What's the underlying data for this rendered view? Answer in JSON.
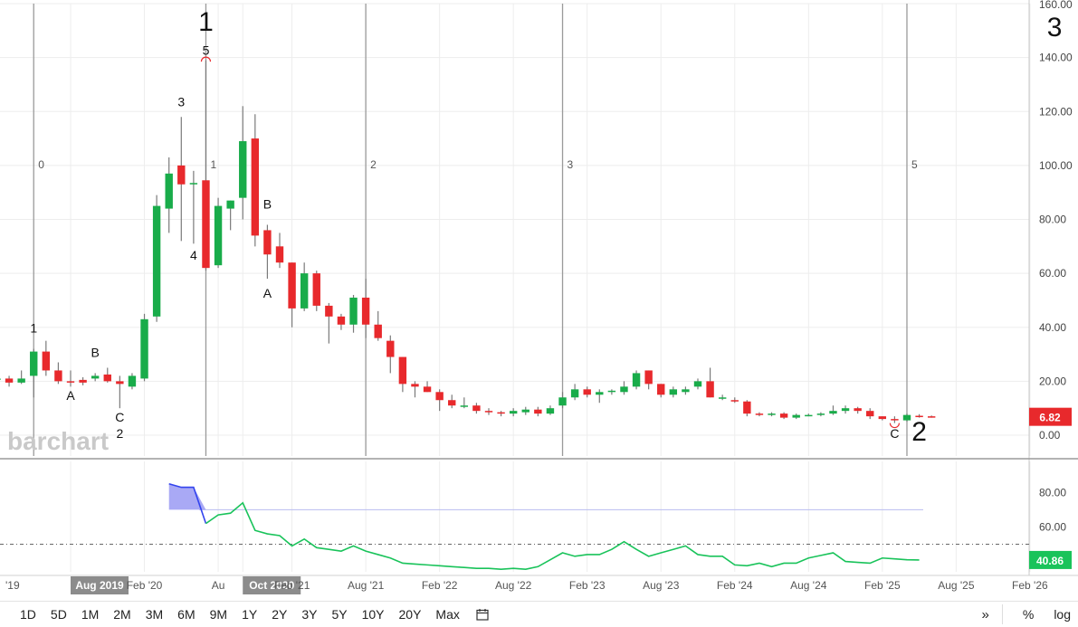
{
  "chart_data": {
    "type": "candlestick",
    "interval": "monthly",
    "ylim": [
      0,
      160
    ],
    "yticks": [
      0,
      20,
      40,
      60,
      80,
      100,
      120,
      140,
      160
    ],
    "ytick_labels": [
      "0.00",
      "20.00",
      "40.00",
      "60.00",
      "80.00",
      "100.00",
      "120.00",
      "140.00",
      "160.00"
    ],
    "last_price_label": "6.82",
    "x_labels": [
      "'19",
      "Aug 2019",
      "Feb '20",
      "Au",
      "Oct 2020",
      "Feb '21",
      "Aug '21",
      "Feb '22",
      "Aug '22",
      "Feb '23",
      "Aug '23",
      "Feb '24",
      "Aug '24",
      "Feb '25",
      "Aug '25",
      "Feb '26"
    ],
    "x_label_dates": [
      "2019-01",
      "2019-08",
      "2020-02",
      "2020-08",
      "2020-10",
      "2021-02",
      "2021-08",
      "2022-02",
      "2022-08",
      "2023-02",
      "2023-08",
      "2024-02",
      "2024-08",
      "2025-02",
      "2025-08",
      "2026-02"
    ],
    "highlighted_x_labels": [
      "Aug 2019",
      "Oct 2020"
    ],
    "candles": [
      {
        "date": "2019-02",
        "o": 20.5,
        "h": 23,
        "l": 19.5,
        "c": 21
      },
      {
        "date": "2019-03",
        "o": 21,
        "h": 22,
        "l": 18,
        "c": 19.5
      },
      {
        "date": "2019-04",
        "o": 19.5,
        "h": 24,
        "l": 19,
        "c": 21
      },
      {
        "date": "2019-05",
        "o": 22,
        "h": 32,
        "l": 14,
        "c": 31
      },
      {
        "date": "2019-06",
        "o": 31,
        "h": 35,
        "l": 22,
        "c": 24
      },
      {
        "date": "2019-07",
        "o": 24,
        "h": 27,
        "l": 19,
        "c": 20
      },
      {
        "date": "2019-08",
        "o": 20,
        "h": 24,
        "l": 18,
        "c": 19.5
      },
      {
        "date": "2019-09",
        "o": 20.5,
        "h": 21.5,
        "l": 18.5,
        "c": 19.5
      },
      {
        "date": "2019-10",
        "o": 21,
        "h": 23,
        "l": 20,
        "c": 22
      },
      {
        "date": "2019-11",
        "o": 22.5,
        "h": 25,
        "l": 19.5,
        "c": 20
      },
      {
        "date": "2019-12",
        "o": 20,
        "h": 22,
        "l": 10,
        "c": 19
      },
      {
        "date": "2020-01",
        "o": 18,
        "h": 23,
        "l": 17,
        "c": 22
      },
      {
        "date": "2020-02",
        "o": 21,
        "h": 45,
        "l": 20,
        "c": 43
      },
      {
        "date": "2020-03",
        "o": 44,
        "h": 89,
        "l": 42,
        "c": 85
      },
      {
        "date": "2020-04",
        "o": 84,
        "h": 103,
        "l": 75,
        "c": 97
      },
      {
        "date": "2020-05",
        "o": 100,
        "h": 118,
        "l": 72,
        "c": 93
      },
      {
        "date": "2020-06",
        "o": 93,
        "h": 98,
        "l": 71,
        "c": 93.5
      },
      {
        "date": "2020-07",
        "o": 94.5,
        "h": 139,
        "l": 61,
        "c": 62
      },
      {
        "date": "2020-08",
        "o": 63,
        "h": 88,
        "l": 62,
        "c": 85
      },
      {
        "date": "2020-09",
        "o": 84,
        "h": 87,
        "l": 76,
        "c": 87
      },
      {
        "date": "2020-10",
        "o": 88,
        "h": 122,
        "l": 80,
        "c": 109
      },
      {
        "date": "2020-11",
        "o": 110,
        "h": 119,
        "l": 70,
        "c": 74
      },
      {
        "date": "2020-12",
        "o": 76,
        "h": 78,
        "l": 58,
        "c": 67
      },
      {
        "date": "2021-01",
        "o": 70,
        "h": 75,
        "l": 62,
        "c": 64
      },
      {
        "date": "2021-02",
        "o": 64,
        "h": 64,
        "l": 40,
        "c": 47
      },
      {
        "date": "2021-03",
        "o": 47,
        "h": 64,
        "l": 46,
        "c": 60
      },
      {
        "date": "2021-04",
        "o": 60,
        "h": 61,
        "l": 46,
        "c": 48
      },
      {
        "date": "2021-05",
        "o": 48,
        "h": 49,
        "l": 34,
        "c": 44
      },
      {
        "date": "2021-06",
        "o": 44,
        "h": 45,
        "l": 39,
        "c": 41
      },
      {
        "date": "2021-07",
        "o": 41,
        "h": 52,
        "l": 38,
        "c": 51
      },
      {
        "date": "2021-08",
        "o": 51,
        "h": 58,
        "l": 36,
        "c": 41
      },
      {
        "date": "2021-09",
        "o": 41,
        "h": 46,
        "l": 35,
        "c": 36
      },
      {
        "date": "2021-10",
        "o": 35,
        "h": 37,
        "l": 23,
        "c": 29
      },
      {
        "date": "2021-11",
        "o": 29,
        "h": 29,
        "l": 16,
        "c": 19
      },
      {
        "date": "2021-12",
        "o": 19,
        "h": 20,
        "l": 14,
        "c": 18
      },
      {
        "date": "2022-01",
        "o": 18,
        "h": 20,
        "l": 16,
        "c": 16
      },
      {
        "date": "2022-02",
        "o": 16,
        "h": 17,
        "l": 9,
        "c": 13
      },
      {
        "date": "2022-03",
        "o": 13,
        "h": 15,
        "l": 10,
        "c": 11
      },
      {
        "date": "2022-04",
        "o": 11,
        "h": 14,
        "l": 10,
        "c": 11
      },
      {
        "date": "2022-05",
        "o": 11,
        "h": 12,
        "l": 8,
        "c": 9
      },
      {
        "date": "2022-06",
        "o": 9,
        "h": 10,
        "l": 7.5,
        "c": 8.5
      },
      {
        "date": "2022-07",
        "o": 8.5,
        "h": 9,
        "l": 7,
        "c": 8
      },
      {
        "date": "2022-08",
        "o": 8,
        "h": 10,
        "l": 7,
        "c": 9
      },
      {
        "date": "2022-09",
        "o": 8.5,
        "h": 10.5,
        "l": 7.5,
        "c": 9.5
      },
      {
        "date": "2022-10",
        "o": 9.5,
        "h": 10.5,
        "l": 7,
        "c": 8
      },
      {
        "date": "2022-11",
        "o": 8,
        "h": 11,
        "l": 7.5,
        "c": 10
      },
      {
        "date": "2022-12",
        "o": 11,
        "h": 16,
        "l": 10,
        "c": 14
      },
      {
        "date": "2023-01",
        "o": 14,
        "h": 19,
        "l": 13,
        "c": 17
      },
      {
        "date": "2023-02",
        "o": 17,
        "h": 18,
        "l": 14,
        "c": 15
      },
      {
        "date": "2023-03",
        "o": 15,
        "h": 17,
        "l": 12,
        "c": 16
      },
      {
        "date": "2023-04",
        "o": 16,
        "h": 17,
        "l": 15,
        "c": 16.5
      },
      {
        "date": "2023-05",
        "o": 16,
        "h": 20,
        "l": 15,
        "c": 18
      },
      {
        "date": "2023-06",
        "o": 18,
        "h": 24,
        "l": 17,
        "c": 23
      },
      {
        "date": "2023-07",
        "o": 24,
        "h": 24,
        "l": 17,
        "c": 19
      },
      {
        "date": "2023-08",
        "o": 19,
        "h": 19,
        "l": 14,
        "c": 15
      },
      {
        "date": "2023-09",
        "o": 15,
        "h": 18,
        "l": 14,
        "c": 17
      },
      {
        "date": "2023-10",
        "o": 16,
        "h": 18,
        "l": 15,
        "c": 17
      },
      {
        "date": "2023-11",
        "o": 18,
        "h": 21,
        "l": 17,
        "c": 20
      },
      {
        "date": "2023-12",
        "o": 20,
        "h": 25,
        "l": 14,
        "c": 14
      },
      {
        "date": "2024-01",
        "o": 14,
        "h": 15,
        "l": 13,
        "c": 14
      },
      {
        "date": "2024-02",
        "o": 13,
        "h": 14,
        "l": 12,
        "c": 12.5
      },
      {
        "date": "2024-03",
        "o": 12.5,
        "h": 13,
        "l": 7,
        "c": 8
      },
      {
        "date": "2024-04",
        "o": 8,
        "h": 8.5,
        "l": 7,
        "c": 7.5
      },
      {
        "date": "2024-05",
        "o": 7.5,
        "h": 8.5,
        "l": 7,
        "c": 8
      },
      {
        "date": "2024-06",
        "o": 8,
        "h": 8.5,
        "l": 6,
        "c": 6.5
      },
      {
        "date": "2024-07",
        "o": 6.5,
        "h": 8,
        "l": 6,
        "c": 7.5
      },
      {
        "date": "2024-08",
        "o": 7.5,
        "h": 8,
        "l": 7,
        "c": 7.5
      },
      {
        "date": "2024-09",
        "o": 7.5,
        "h": 8.5,
        "l": 7,
        "c": 8
      },
      {
        "date": "2024-10",
        "o": 8,
        "h": 11,
        "l": 7.5,
        "c": 9
      },
      {
        "date": "2024-11",
        "o": 9,
        "h": 11,
        "l": 8,
        "c": 10
      },
      {
        "date": "2024-12",
        "o": 10,
        "h": 10.5,
        "l": 8,
        "c": 9
      },
      {
        "date": "2025-01",
        "o": 9,
        "h": 10,
        "l": 6,
        "c": 7
      },
      {
        "date": "2025-02",
        "o": 7,
        "h": 7,
        "l": 5.5,
        "c": 6
      },
      {
        "date": "2025-03",
        "o": 6,
        "h": 7,
        "l": 4.5,
        "c": 5.5
      },
      {
        "date": "2025-04",
        "o": 5.5,
        "h": 8,
        "l": 5,
        "c": 7.5
      },
      {
        "date": "2025-05",
        "o": 7.2,
        "h": 7.8,
        "l": 6.5,
        "c": 7
      },
      {
        "date": "2025-06",
        "o": 7,
        "h": 7.3,
        "l": 6.5,
        "c": 6.82
      }
    ],
    "wave_lines": [
      {
        "date": "2019-05",
        "label": "0"
      },
      {
        "date": "2020-07",
        "label": "1"
      },
      {
        "date": "2021-08",
        "label": "2"
      },
      {
        "date": "2022-12",
        "label": "3"
      },
      {
        "date": "2025-04",
        "label": "5"
      }
    ],
    "wave_labels": [
      {
        "text": "1",
        "date": "2020-07",
        "y": 150,
        "size": "large"
      },
      {
        "text": "3",
        "date": "2026-04",
        "y": 148,
        "size": "large"
      },
      {
        "text": "2",
        "date": "2025-05",
        "y": -2,
        "size": "large"
      },
      {
        "text": "5",
        "date": "2020-07",
        "y": 141,
        "size": "small"
      },
      {
        "text": "3",
        "date": "2020-05",
        "y": 122,
        "size": "small"
      },
      {
        "text": "4",
        "date": "2020-06",
        "y": 65,
        "size": "small"
      },
      {
        "text": "B",
        "date": "2020-12",
        "y": 84,
        "size": "small"
      },
      {
        "text": "A",
        "date": "2020-12",
        "y": 51,
        "size": "small"
      },
      {
        "text": "1",
        "date": "2019-05",
        "y": 38,
        "size": "small"
      },
      {
        "text": "A",
        "date": "2019-08",
        "y": 13,
        "size": "small"
      },
      {
        "text": "B",
        "date": "2019-10",
        "y": 29,
        "size": "small"
      },
      {
        "text": "C",
        "date": "2019-12",
        "y": 5,
        "size": "small"
      },
      {
        "text": "2",
        "date": "2019-12",
        "y": -1,
        "size": "small"
      },
      {
        "text": "C",
        "date": "2025-03",
        "y": -1,
        "size": "small"
      }
    ],
    "indicator": {
      "ylim": [
        34,
        98
      ],
      "yticks": [
        60,
        80
      ],
      "ytick_labels": [
        "60.00",
        "80.00"
      ],
      "overbought": 70,
      "midline": 50,
      "last_value_label": "40.86",
      "points": [
        {
          "date": "2020-04",
          "v": 85
        },
        {
          "date": "2020-05",
          "v": 83
        },
        {
          "date": "2020-06",
          "v": 83
        },
        {
          "date": "2020-07",
          "v": 62
        },
        {
          "date": "2020-08",
          "v": 67
        },
        {
          "date": "2020-09",
          "v": 68
        },
        {
          "date": "2020-10",
          "v": 74
        },
        {
          "date": "2020-11",
          "v": 58
        },
        {
          "date": "2020-12",
          "v": 56
        },
        {
          "date": "2021-01",
          "v": 55
        },
        {
          "date": "2021-02",
          "v": 49
        },
        {
          "date": "2021-03",
          "v": 53
        },
        {
          "date": "2021-04",
          "v": 48
        },
        {
          "date": "2021-05",
          "v": 47
        },
        {
          "date": "2021-06",
          "v": 46
        },
        {
          "date": "2021-07",
          "v": 49
        },
        {
          "date": "2021-08",
          "v": 46
        },
        {
          "date": "2021-09",
          "v": 44
        },
        {
          "date": "2021-10",
          "v": 42
        },
        {
          "date": "2021-11",
          "v": 39
        },
        {
          "date": "2021-12",
          "v": 38.5
        },
        {
          "date": "2022-01",
          "v": 38
        },
        {
          "date": "2022-02",
          "v": 37.5
        },
        {
          "date": "2022-03",
          "v": 37
        },
        {
          "date": "2022-04",
          "v": 36.5
        },
        {
          "date": "2022-05",
          "v": 36
        },
        {
          "date": "2022-06",
          "v": 36
        },
        {
          "date": "2022-07",
          "v": 35.5
        },
        {
          "date": "2022-08",
          "v": 36
        },
        {
          "date": "2022-09",
          "v": 35.5
        },
        {
          "date": "2022-10",
          "v": 37
        },
        {
          "date": "2022-11",
          "v": 41
        },
        {
          "date": "2022-12",
          "v": 45
        },
        {
          "date": "2023-01",
          "v": 43
        },
        {
          "date": "2023-02",
          "v": 44
        },
        {
          "date": "2023-03",
          "v": 44
        },
        {
          "date": "2023-04",
          "v": 47
        },
        {
          "date": "2023-05",
          "v": 51.5
        },
        {
          "date": "2023-06",
          "v": 47
        },
        {
          "date": "2023-07",
          "v": 43
        },
        {
          "date": "2023-08",
          "v": 45
        },
        {
          "date": "2023-09",
          "v": 47
        },
        {
          "date": "2023-10",
          "v": 49
        },
        {
          "date": "2023-11",
          "v": 44
        },
        {
          "date": "2023-12",
          "v": 43
        },
        {
          "date": "2024-01",
          "v": 43
        },
        {
          "date": "2024-02",
          "v": 38
        },
        {
          "date": "2024-03",
          "v": 37.5
        },
        {
          "date": "2024-04",
          "v": 39
        },
        {
          "date": "2024-05",
          "v": 37
        },
        {
          "date": "2024-06",
          "v": 39
        },
        {
          "date": "2024-07",
          "v": 39
        },
        {
          "date": "2024-08",
          "v": 42
        },
        {
          "date": "2024-09",
          "v": 43.5
        },
        {
          "date": "2024-10",
          "v": 45
        },
        {
          "date": "2024-11",
          "v": 40
        },
        {
          "date": "2024-12",
          "v": 39.5
        },
        {
          "date": "2025-01",
          "v": 39
        },
        {
          "date": "2025-02",
          "v": 42
        },
        {
          "date": "2025-03",
          "v": 41.5
        },
        {
          "date": "2025-04",
          "v": 41
        },
        {
          "date": "2025-05",
          "v": 40.86
        }
      ],
      "overbought_segment_end_date": "2020-07"
    },
    "colors": {
      "up": "#19ac4a",
      "down": "#e8292c",
      "wick": "#7a7a7a",
      "indicator_line": "#19c35a",
      "indicator_overbought_line": "#3344ee",
      "indicator_fill": "#8c8cf2",
      "price_badge": "#e8292c",
      "indicator_badge": "#19c35a",
      "highlight_label_bg": "#8c8c8c",
      "grid": "#ededed",
      "wave_line": "#9a9a9a"
    },
    "watermark": "barchart"
  },
  "toolbar": {
    "ranges": [
      "1D",
      "5D",
      "1M",
      "2M",
      "3M",
      "6M",
      "9M",
      "1Y",
      "2Y",
      "3Y",
      "5Y",
      "10Y",
      "20Y",
      "Max"
    ],
    "percent_label": "%",
    "log_label": "log"
  }
}
